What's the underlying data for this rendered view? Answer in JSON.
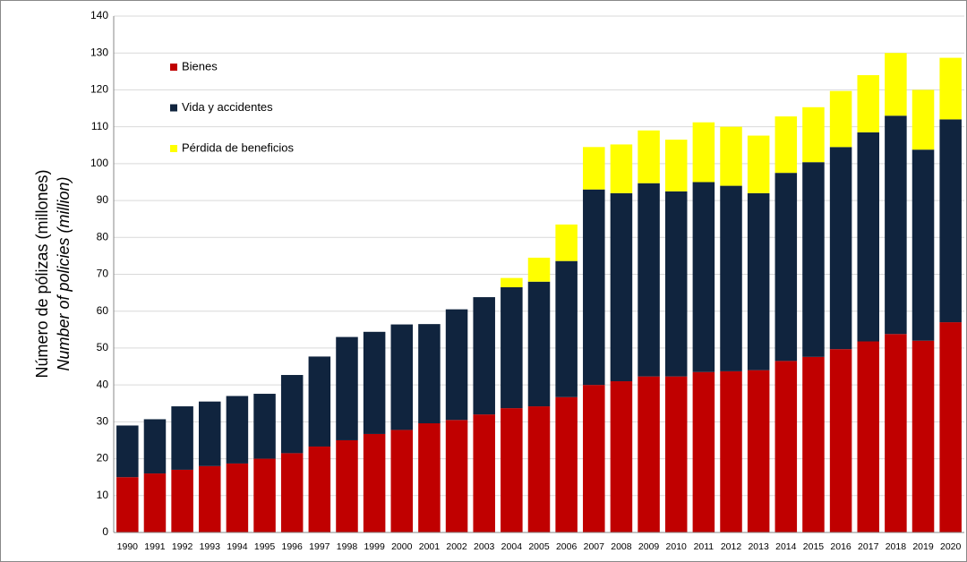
{
  "chart_data": {
    "type": "stacked_bar",
    "y_label": "Número de pólizas (millones)",
    "y_label_en": "Number of policies (million)",
    "categories": [
      "1990",
      "1991",
      "1992",
      "1993",
      "1994",
      "1995",
      "1996",
      "1997",
      "1998",
      "1999",
      "2000",
      "2001",
      "2002",
      "2003",
      "2004",
      "2005",
      "2006",
      "2007",
      "2008",
      "2009",
      "2010",
      "2011",
      "2012",
      "2013",
      "2014",
      "2015",
      "2016",
      "2017",
      "2018",
      "2019",
      "2020"
    ],
    "series": [
      {
        "name": "Bienes",
        "color": "#c00000",
        "values": [
          15,
          16,
          17,
          18,
          18.7,
          20,
          21.5,
          23.3,
          25,
          26.7,
          27.8,
          29.6,
          30.5,
          32,
          33.7,
          34.2,
          36.7,
          40,
          41,
          42.3,
          42.3,
          43.5,
          43.7,
          44,
          46.5,
          47.6,
          49.7,
          51.8,
          53.8,
          52,
          57
        ]
      },
      {
        "name": "Vida y accidentes",
        "color": "#10243e",
        "values": [
          14,
          14.7,
          17.2,
          17.5,
          18.3,
          17.6,
          21.2,
          24.4,
          28,
          27.7,
          28.6,
          26.9,
          30,
          31.8,
          32.8,
          33.8,
          36.9,
          53,
          51,
          52.4,
          50.2,
          51.5,
          50.3,
          48,
          51,
          52.8,
          54.8,
          56.7,
          59.2,
          51.8,
          55
        ]
      },
      {
        "name": "Pérdida de beneficios",
        "color": "#ffff00",
        "values": [
          null,
          null,
          null,
          null,
          null,
          null,
          null,
          null,
          null,
          null,
          null,
          null,
          null,
          null,
          2.5,
          6.5,
          9.9,
          11.5,
          13.2,
          14.3,
          14,
          16.2,
          16,
          15.6,
          15.3,
          14.9,
          15.2,
          15.5,
          17,
          16.2,
          16.7
        ]
      }
    ],
    "ylim": [
      0,
      140
    ],
    "yticks": [
      0,
      10,
      20,
      30,
      40,
      50,
      60,
      70,
      80,
      90,
      100,
      110,
      120,
      130,
      140
    ],
    "grid": true,
    "legend": "upper-left"
  }
}
